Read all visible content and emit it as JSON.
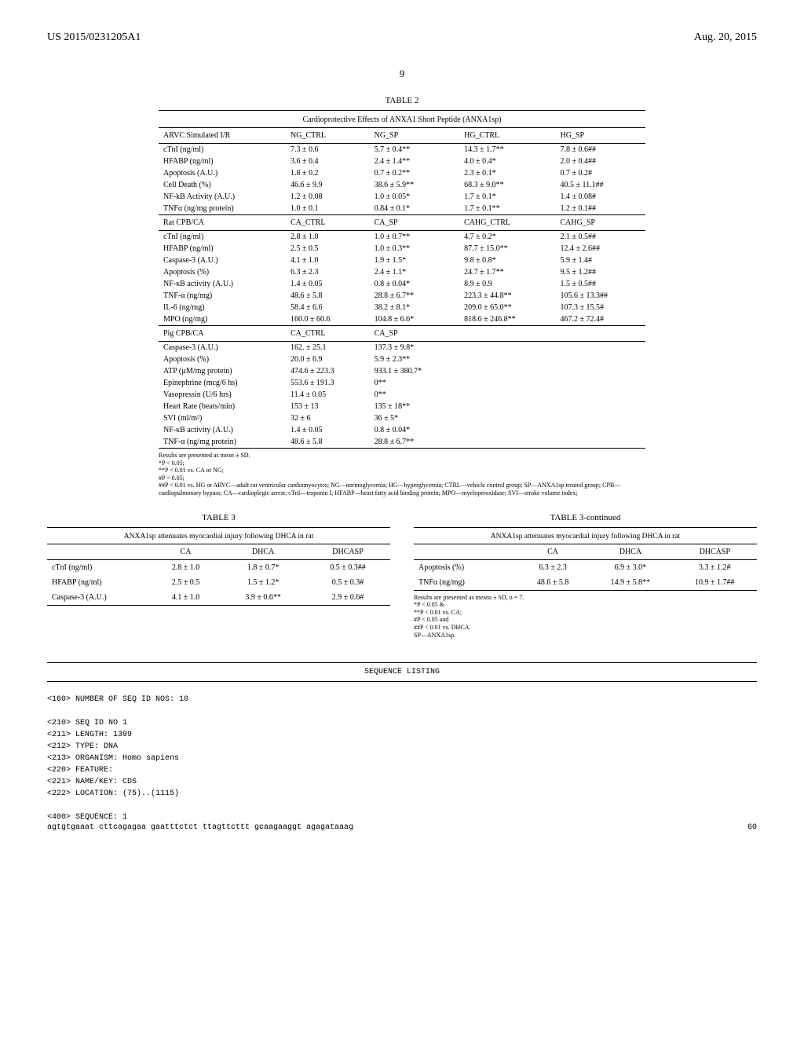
{
  "header": {
    "left": "US 2015/0231205A1",
    "right": "Aug. 20, 2015"
  },
  "page_number": "9",
  "table2": {
    "label": "TABLE 2",
    "caption": "Cardioprotective Effects of ANXA1 Short Peptide (ANXA1sp)",
    "section1": {
      "header_row": [
        "ARVC Simulated I/R",
        "NG_CTRL",
        "NG_SP",
        "HG_CTRL",
        "HG_SP"
      ],
      "rows": [
        [
          "cTnI (ng/ml)",
          "7.3 ± 0.6",
          "5.7 ± 0.4**",
          "14.3 ± 1.7**",
          "7.8 ± 0.6##"
        ],
        [
          "HFABP (ng/ml)",
          "3.6 ± 0.4",
          "2.4 ± 1.4**",
          "4.0 ± 0.4*",
          "2.0 ± 0.4##"
        ],
        [
          "Apoptosis (A.U.)",
          "1.8 ± 0.2",
          "0.7 ± 0.2**",
          "2.3 ± 0.1*",
          "0.7 ± 0.2#"
        ],
        [
          "Cell Death (%)",
          "46.6 ± 9.9",
          "38.6 ± 5.9**",
          "68.3 ± 9.0**",
          "40.5 ± 11.1##"
        ],
        [
          "NF-kB Activity (A.U.)",
          "1.2 ± 0.08",
          "1.0 ± 0.05*",
          "1.7 ± 0.1*",
          "1.4 ± 0.08#"
        ],
        [
          "TNFα (ng/mg protein)",
          "1.0 ± 0.1",
          "0.84 ± 0.1*",
          "1.7 ± 0.1**",
          "1.2 ± 0.1##"
        ]
      ]
    },
    "section2": {
      "header_row": [
        "Rat CPB/CA",
        "CA_CTRL",
        "CA_SP",
        "CAHG_CTRL",
        "CAHG_SP"
      ],
      "rows": [
        [
          "cTnI (ng/ml)",
          "2.8 ± 1.0",
          "1.0 ± 0.7**",
          "4.7 ± 0.2*",
          "2.1 ± 0.5##"
        ],
        [
          "HFABP (ng/ml)",
          "2.5 ± 0.5",
          "1.0 ± 0.3**",
          "87.7 ± 15.0**",
          "12.4 ± 2.6##"
        ],
        [
          "Caspase-3 (A.U.)",
          "4.1 ± 1.0",
          "1.9 ± 1.5*",
          "9.8 ± 0.8*",
          "5.9 ± 1.4#"
        ],
        [
          "Apoptosis (%)",
          "6.3 ± 2.3",
          "2.4 ± 1.1*",
          "24.7 ± 1.7**",
          "9.5 ± 1.2##"
        ],
        [
          "NF-κB activity (A.U.)",
          "1.4 ± 0.05",
          "0.8 ± 0.04*",
          "8.9 ± 0.9",
          "1.5 ± 0.5##"
        ],
        [
          "TNF-α (ng/mg)",
          "48.6 ± 5.8",
          "28.8 ± 6.7**",
          "223.3 ± 44.8**",
          "105.6 ± 13.3##"
        ],
        [
          "IL-6 (ng/mg)",
          "58.4 ± 6.6",
          "38.2 ± 8.1*",
          "209.0 ± 65.0**",
          "107.3 ± 15.5#"
        ],
        [
          "MPO (ng/mg)",
          "160.0 ± 60.6",
          "104.8 ± 6.6*",
          "818.6 ± 246.8**",
          "467.2 ± 72.4#"
        ]
      ]
    },
    "section3": {
      "header_row": [
        "Pig CPB/CA",
        "CA_CTRL",
        "CA_SP",
        "",
        ""
      ],
      "rows": [
        [
          "Caspase-3 (A.U.)",
          "162. ± 25.1",
          "137.3 ± 9.8*",
          "",
          ""
        ],
        [
          "Apoptosis (%)",
          "20.0 ± 6.9",
          "5.9 ± 2.3**",
          "",
          ""
        ],
        [
          "ATP (µM/mg protein)",
          "474.6 ± 223.3",
          "933.1 ± 380.7*",
          "",
          ""
        ],
        [
          "Epinephrine (mcg/6 hs)",
          "553.6 ± 191.3",
          "0**",
          "",
          ""
        ],
        [
          "Vasopressin (U/6 hrs)",
          "11.4 ± 0.05",
          "0**",
          "",
          ""
        ],
        [
          "Heart Rate (beats/min)",
          "153 ± 13",
          "135 ± 18**",
          "",
          ""
        ],
        [
          "SVI (ml/m²)",
          "32 ± 6",
          "36 ± 5*",
          "",
          ""
        ],
        [
          "NF-κB activity (A.U.)",
          "1.4 ± 0.05",
          "0.8 ± 0.04*",
          "",
          ""
        ],
        [
          "TNF-α (ng/mg protein)",
          "48.6 ± 5.8",
          "28.8 ± 6.7**",
          "",
          ""
        ]
      ]
    },
    "footnotes": [
      "Results are presented as mean ± SD.",
      "*P < 0.05;",
      "**P < 0.01 vs. CA or NG;",
      "#P < 0.05;",
      "##P < 0.01 vs. HG or ARVC—adult rat ventricular cardiomyocytes; NG—normoglycemia; HG—hyperglycemia; CTRL—vehicle control group; SP—ANXA1sp treated group; CPB—cardiopulmonary bypass; CA—cardioplegic arrest; cTnI—troponin I; HFABP—heart fatty acid binding protein; MPO—myeloperoxidase; SVI—stroke volume index;"
    ]
  },
  "table3_left": {
    "label": "TABLE 3",
    "caption": "ANXA1sp attenuates myocardial injury following DHCA in rat",
    "columns": [
      "",
      "CA",
      "DHCA",
      "DHCASP"
    ],
    "rows": [
      [
        "cTnI (ng/ml)",
        "2.8 ± 1.0",
        "1.8 ± 0.7*",
        "0.5 ± 0.3##"
      ],
      [
        "HFABP (ng/ml)",
        "2.5 ± 0.5",
        "1.5 ± 1.2*",
        "0.5 ± 0.3#"
      ],
      [
        "Caspase-3 (A.U.)",
        "4.1 ± 1.0",
        "3.9 ± 0.6**",
        "2.9 ± 0.6#"
      ]
    ]
  },
  "table3_right": {
    "label": "TABLE 3-continued",
    "caption": "ANXA1sp attenuates myocardial injury following DHCA in rat",
    "columns": [
      "",
      "CA",
      "DHCA",
      "DHCASP"
    ],
    "rows": [
      [
        "Apoptosis (%)",
        "6.3 ± 2.3",
        "6.9 ± 3.0*",
        "3.3 ± 1.2#"
      ],
      [
        "TNFα (ng/mg)",
        "48.6 ± 5.8",
        "14.9 ± 5.8**",
        "10.9 ± 1.7##"
      ]
    ],
    "footnotes": [
      "Results are presented as means ± SD, n = 7.",
      "*P < 0.05 &",
      "**P < 0.01 vs. CA;",
      "#P < 0.05 and",
      "##P < 0.01 vs. DHCA.",
      "SP—ANXA1sp."
    ]
  },
  "sequence": {
    "heading": "SEQUENCE LISTING",
    "lines": [
      "<160> NUMBER OF SEQ ID NOS: 10",
      "",
      "<210> SEQ ID NO 1",
      "<211> LENGTH: 1399",
      "<212> TYPE: DNA",
      "<213> ORGANISM: Homo sapiens",
      "<220> FEATURE:",
      "<221> NAME/KEY: CDS",
      "<222> LOCATION: (75)..(1115)",
      "",
      "<400> SEQUENCE: 1"
    ],
    "dna_line": "agtgtgaaat cttcagagaa gaatttctct ttagttcttt gcaagaaggt agagataaag",
    "dna_num": "60"
  }
}
